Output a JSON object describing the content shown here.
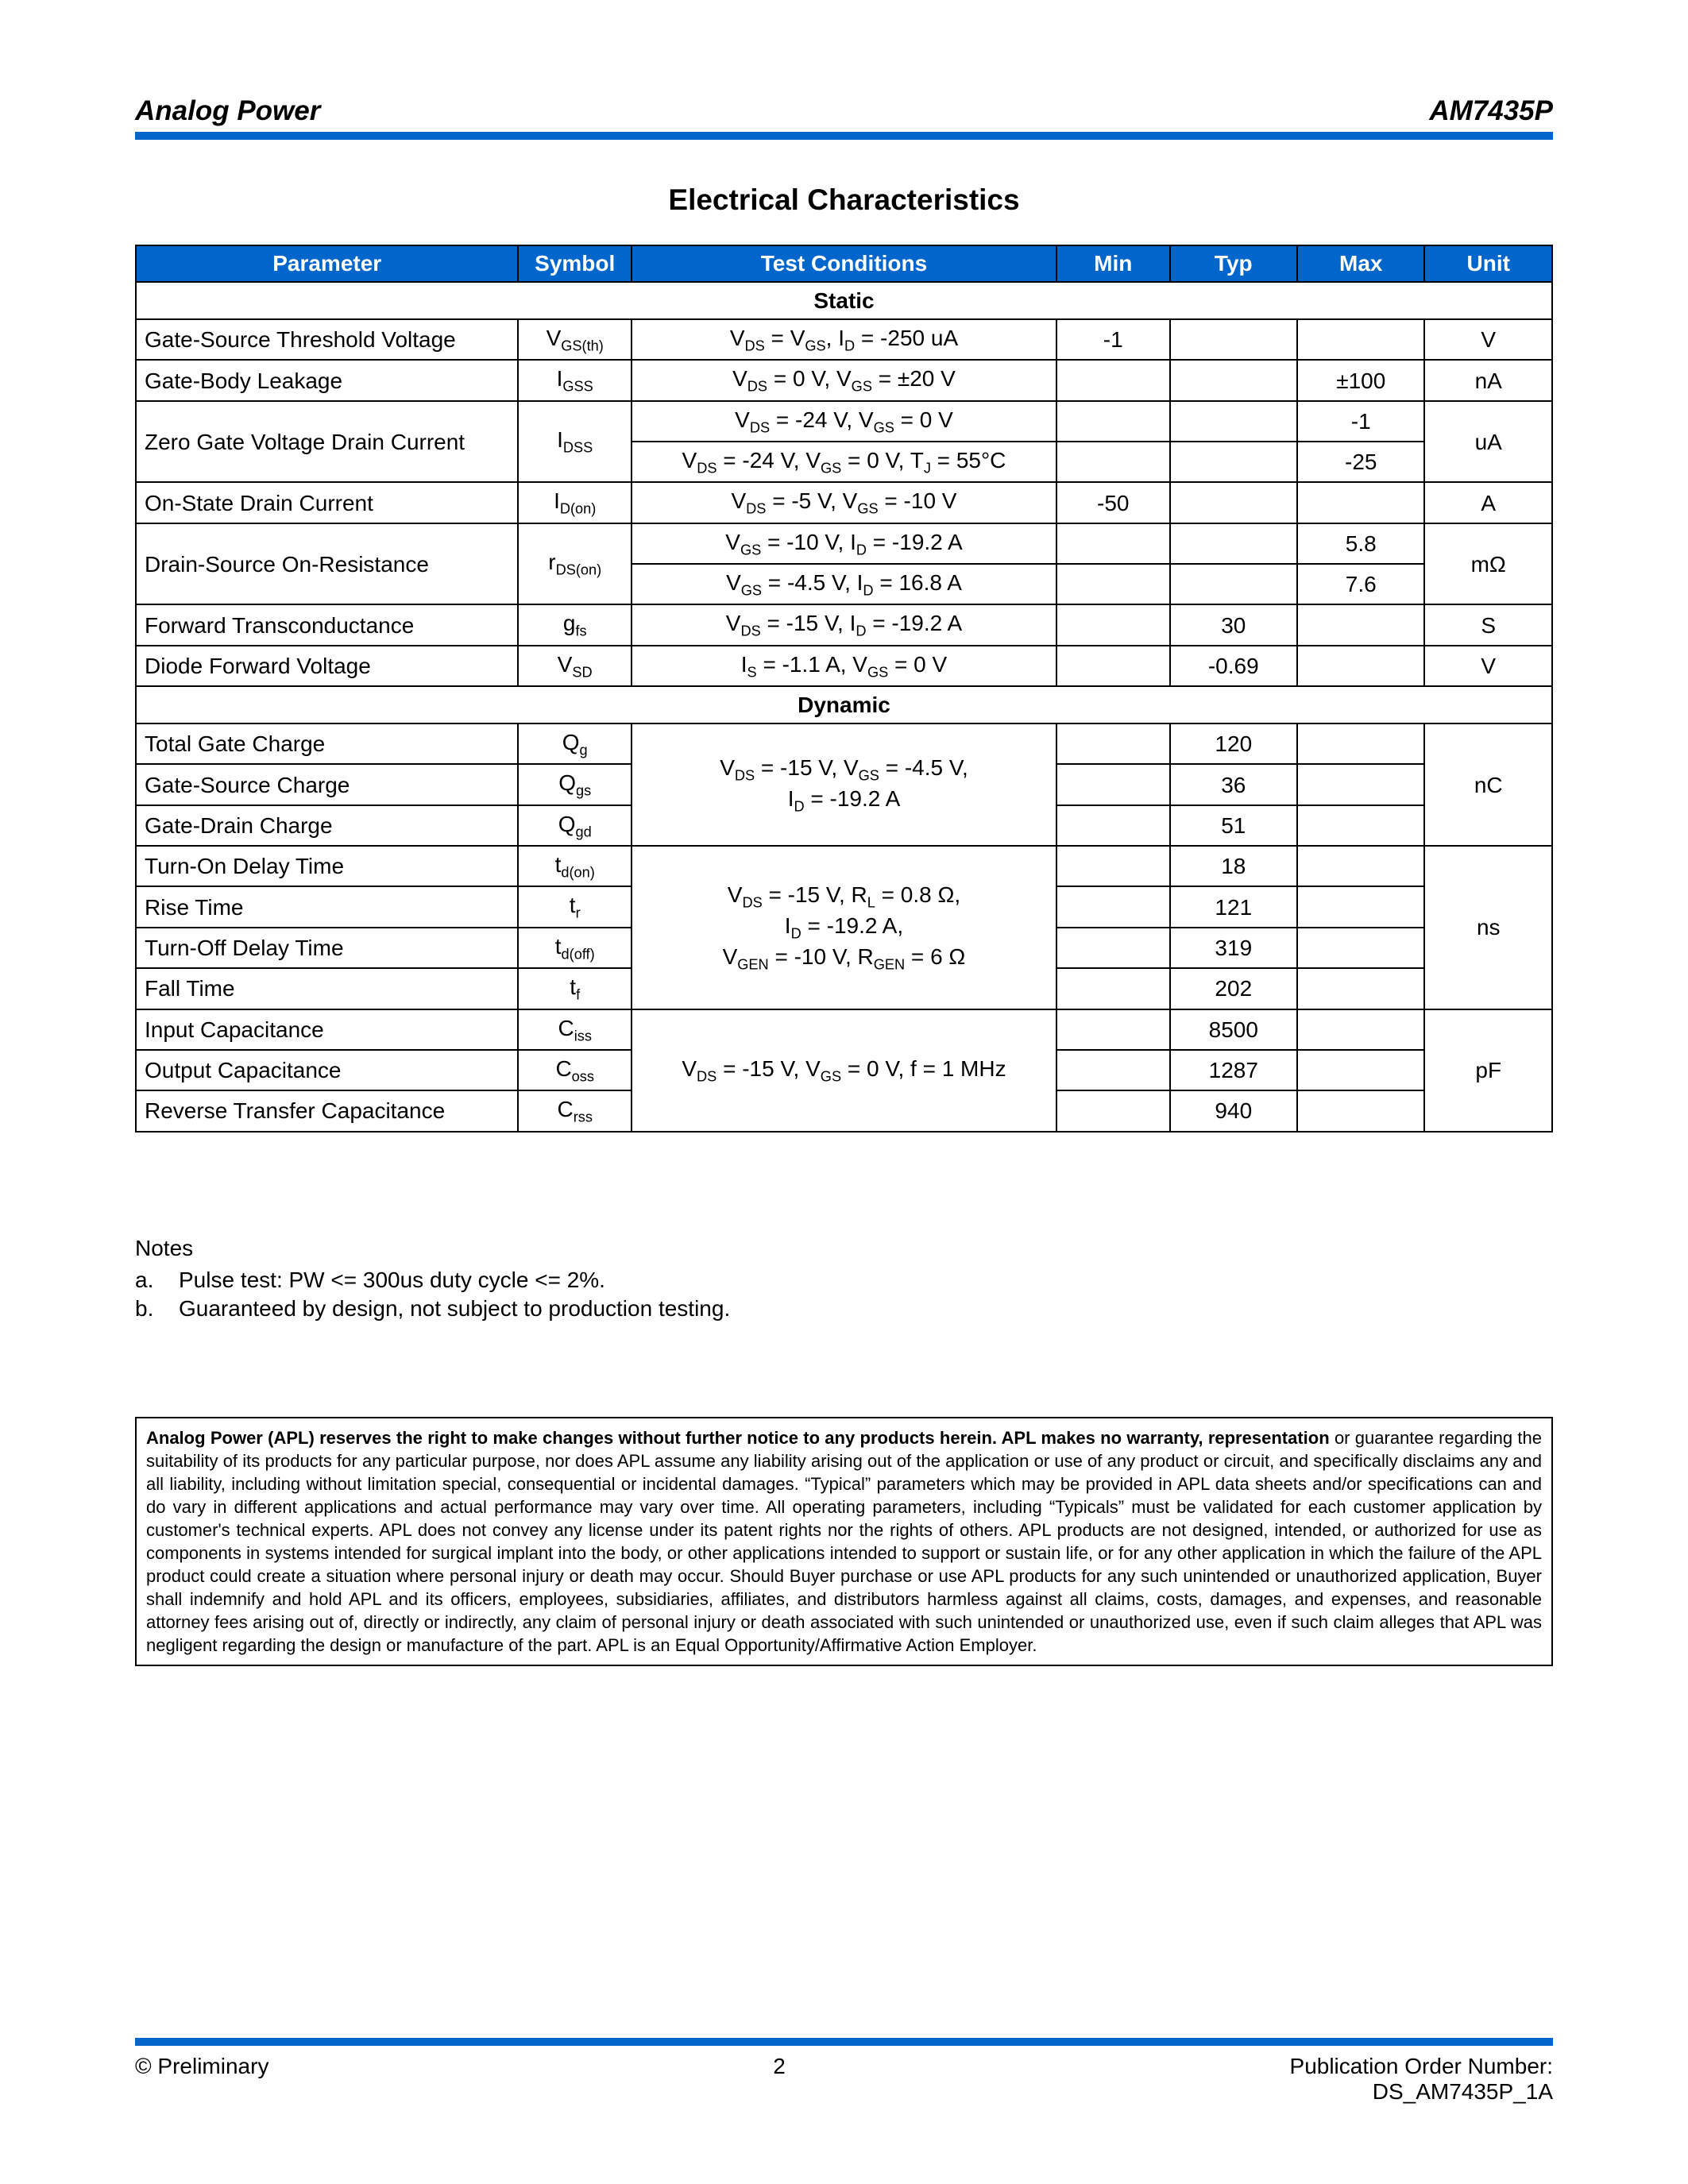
{
  "header": {
    "company": "Analog Power",
    "part_number": "AM7435P"
  },
  "title": "Electrical Characteristics",
  "columns": {
    "parameter": "Parameter",
    "symbol": "Symbol",
    "conditions": "Test Conditions",
    "min": "Min",
    "typ": "Typ",
    "max": "Max",
    "unit": "Unit"
  },
  "col_widths": {
    "parameter": "27%",
    "symbol": "8%",
    "conditions": "30%",
    "min": "8%",
    "typ": "9%",
    "max": "9%",
    "unit": "9%"
  },
  "theme": {
    "accent": "#0066cc",
    "header_text": "#ffffff",
    "border": "#000000"
  },
  "sections": {
    "static": "Static",
    "dynamic": "Dynamic"
  },
  "static": {
    "vgsth": {
      "param": "Gate-Source Threshold Voltage",
      "sym_html": "V<sub>GS(th)</sub>",
      "cond_html": "V<sub>DS</sub> = V<sub>GS</sub>, I<sub>D</sub> = -250 uA",
      "min": "-1",
      "typ": "",
      "max": "",
      "unit": "V"
    },
    "igss": {
      "param": "Gate-Body Leakage",
      "sym_html": "I<sub>GSS</sub>",
      "cond_html": "V<sub>DS</sub> = 0 V, V<sub>GS</sub> = ±20 V",
      "min": "",
      "typ": "",
      "max": "±100",
      "unit": "nA"
    },
    "idss": {
      "param": "Zero Gate Voltage Drain Current",
      "sym_html": "I<sub>DSS</sub>",
      "cond1_html": "V<sub>DS</sub> = -24 V, V<sub>GS</sub> = 0 V",
      "cond2_html": "V<sub>DS</sub> = -24 V, V<sub>GS</sub> = 0 V, T<sub>J</sub> = 55°C",
      "row1": {
        "min": "",
        "typ": "",
        "max": "-1"
      },
      "row2": {
        "min": "",
        "typ": "",
        "max": "-25"
      },
      "unit": "uA"
    },
    "idon": {
      "param": "On-State Drain Current",
      "sym_html": "I<sub>D(on)</sub>",
      "cond_html": "V<sub>DS</sub> = -5 V, V<sub>GS</sub> = -10 V",
      "min": "-50",
      "typ": "",
      "max": "",
      "unit": "A"
    },
    "rdson": {
      "param": "Drain-Source On-Resistance",
      "sym_html": "r<sub>DS(on)</sub>",
      "cond1_html": "V<sub>GS</sub> = -10 V, I<sub>D</sub> = -19.2 A",
      "cond2_html": "V<sub>GS</sub> = -4.5 V, I<sub>D</sub> = 16.8 A",
      "row1": {
        "min": "",
        "typ": "",
        "max": "5.8"
      },
      "row2": {
        "min": "",
        "typ": "",
        "max": "7.6"
      },
      "unit": "mΩ"
    },
    "gfs": {
      "param": "Forward Transconductance",
      "sym_html": "g<sub>fs</sub>",
      "cond_html": "V<sub>DS</sub> = -15 V, I<sub>D</sub> = -19.2 A",
      "min": "",
      "typ": "30",
      "max": "",
      "unit": "S"
    },
    "vsd": {
      "param": "Diode Forward Voltage",
      "sym_html": "V<sub>SD</sub>",
      "cond_html": "I<sub>S</sub> = -1.1 A, V<sub>GS</sub> = 0 V",
      "min": "",
      "typ": "-0.69",
      "max": "",
      "unit": "V"
    }
  },
  "dynamic": {
    "charge_cond_html": "V<sub>DS</sub> = -15 V, V<sub>GS</sub> = -4.5 V,<br>I<sub>D</sub> = -19.2 A",
    "qg": {
      "param": "Total Gate Charge",
      "sym_html": "Q<sub>g</sub>",
      "typ": "120"
    },
    "qgs": {
      "param": "Gate-Source Charge",
      "sym_html": "Q<sub>gs</sub>",
      "typ": "36"
    },
    "qgd": {
      "param": "Gate-Drain Charge",
      "sym_html": "Q<sub>gd</sub>",
      "typ": "51"
    },
    "charge_unit": "nC",
    "time_cond_html": "V<sub>DS</sub> = -15 V, R<sub>L</sub> = 0.8 Ω,<br>I<sub>D</sub> = -19.2 A,<br>V<sub>GEN</sub> = -10 V, R<sub>GEN</sub> = 6 Ω",
    "tdon": {
      "param": "Turn-On Delay Time",
      "sym_html": "t<sub>d(on)</sub>",
      "typ": "18"
    },
    "tr": {
      "param": "Rise Time",
      "sym_html": "t<sub>r</sub>",
      "typ": "121"
    },
    "tdoff": {
      "param": "Turn-Off Delay Time",
      "sym_html": "t<sub>d(off)</sub>",
      "typ": "319"
    },
    "tf": {
      "param": "Fall Time",
      "sym_html": "t<sub>f</sub>",
      "typ": "202"
    },
    "time_unit": "ns",
    "cap_cond_html": "V<sub>DS</sub> = -15 V, V<sub>GS</sub> = 0 V, f = 1 MHz",
    "ciss": {
      "param": "Input Capacitance",
      "sym_html": "C<sub>iss</sub>",
      "typ": "8500"
    },
    "coss": {
      "param": "Output Capacitance",
      "sym_html": "C<sub>oss</sub>",
      "typ": "1287"
    },
    "crss": {
      "param": "Reverse Transfer Capacitance",
      "sym_html": "C<sub>rss</sub>",
      "typ": "940"
    },
    "cap_unit": "pF"
  },
  "notes": {
    "heading": "Notes",
    "a_key": "a.",
    "a": "Pulse test: PW <= 300us duty cycle <= 2%.",
    "b_key": "b.",
    "b": "Guaranteed by design, not subject to production testing."
  },
  "legal": {
    "bold_lead": "Analog Power (APL) reserves the right to make changes without further notice to any products herein. APL makes no warranty, representation",
    "body": " or guarantee regarding the suitability of its products for any particular purpose, nor does APL assume any liability arising out of the application or use of any product or circuit, and specifically disclaims any and all liability, including without limitation special, consequential or incidental damages. “Typical” parameters which may be provided in APL data sheets and/or specifications can and do vary in different applications and actual performance may vary over time. All operating parameters, including “Typicals” must be validated for each customer application by customer's technical experts. APL does not convey any license under its patent rights nor the rights of others. APL products are not designed, intended, or authorized for use as components in systems intended for surgical implant into the body, or other applications intended to support or sustain life, or for any other application in which the failure of the APL product could create a situation where personal injury or death may occur. Should Buyer purchase or use APL products for any such unintended or unauthorized application, Buyer shall indemnify and hold APL and its officers, employees, subsidiaries, affiliates, and distributors harmless against all claims, costs, damages, and expenses, and reasonable attorney fees arising out of, directly or indirectly, any claim of personal injury or death associated with such unintended or unauthorized use, even if such claim alleges that APL was negligent regarding the design or manufacture of the part. APL is an Equal Opportunity/Affirmative Action Employer."
  },
  "footer": {
    "left": "© Preliminary",
    "page": "2",
    "right1": "Publication Order Number:",
    "right2": "DS_AM7435P_1A"
  }
}
